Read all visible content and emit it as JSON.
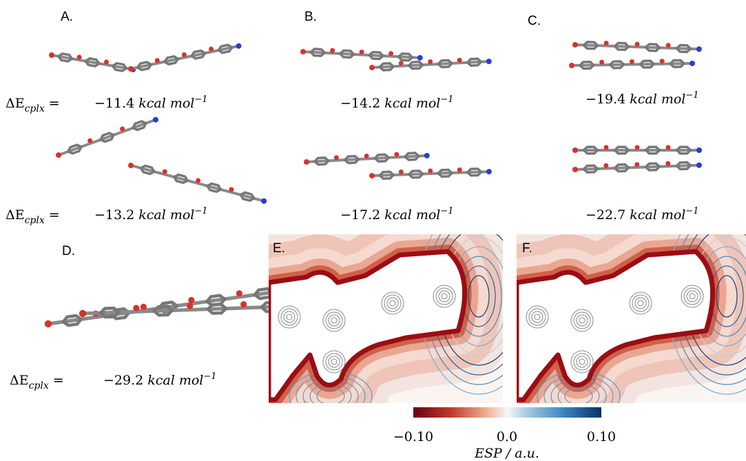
{
  "panels": {
    "a": "A.",
    "b": "B.",
    "c": "C.",
    "d": "D.",
    "e": "E.",
    "f": "F."
  },
  "delta_label": {
    "main": "ΔE",
    "sub": "cplx",
    "eq": "="
  },
  "unit": {
    "main": "kcal mol",
    "exp": "−1"
  },
  "energies": {
    "a_top": "−11.4",
    "b_top": "−14.2",
    "c_top": "−19.4",
    "a_bottom": "−13.2",
    "b_bottom": "−17.2",
    "c_bottom": "−22.7",
    "d": "−29.2"
  },
  "colorbar": {
    "ticks": [
      "−0.10",
      "0.0",
      "0.10"
    ],
    "label": "ESP / a.u."
  }
}
